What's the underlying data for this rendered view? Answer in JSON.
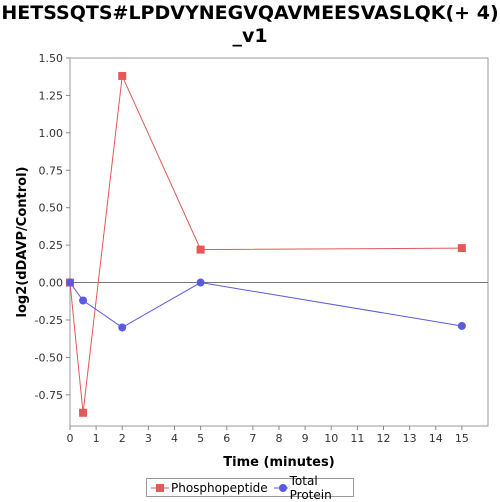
{
  "chart_data": {
    "type": "line",
    "title": "HETSSQTS#LPDVYNEGVQAVMEESVASLQK(+ 4)_v1",
    "title_lines": [
      "HETSSQTS#LPDVYNEGVQAVMEESVASLQK(+ 4)",
      "_v1"
    ],
    "xlabel": "Time (minutes)",
    "ylabel": "log2(dDAVP/Control)",
    "xlim": [
      0,
      16
    ],
    "ylim": [
      -0.9583,
      1.5
    ],
    "x_ticks": [
      0,
      1,
      2,
      3,
      4,
      5,
      6,
      7,
      8,
      9,
      10,
      11,
      12,
      13,
      14,
      15
    ],
    "y_ticks": [
      -0.75,
      -0.5,
      -0.25,
      0.0,
      0.25,
      0.5,
      0.75,
      1.0,
      1.25,
      1.5
    ],
    "y_tick_labels": [
      "-0.75",
      "-0.50",
      "-0.25",
      "0.00",
      "0.25",
      "0.50",
      "0.75",
      "1.00",
      "1.25",
      "1.50"
    ],
    "grid": false,
    "legend_position": "bottom",
    "series": [
      {
        "name": "Phosphopeptide",
        "marker": "square",
        "color": "#e05a5a",
        "x": [
          0,
          0.5,
          2,
          5,
          15
        ],
        "y": [
          0.0,
          -0.87,
          1.38,
          0.22,
          0.23
        ]
      },
      {
        "name": "Total Protein",
        "marker": "circle",
        "color": "#5a5ae0",
        "x": [
          0,
          0.5,
          2,
          5,
          15
        ],
        "y": [
          0.0,
          -0.12,
          -0.3,
          0.0,
          -0.29
        ]
      }
    ]
  }
}
